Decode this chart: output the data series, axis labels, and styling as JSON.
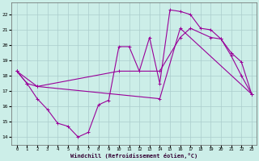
{
  "xlabel": "Windchill (Refroidissement éolien,°C)",
  "background_color": "#cceee8",
  "grid_color": "#aacccc",
  "line_color": "#990099",
  "x_ticks": [
    0,
    1,
    2,
    3,
    4,
    5,
    6,
    7,
    8,
    9,
    10,
    11,
    12,
    13,
    14,
    15,
    16,
    17,
    18,
    19,
    20,
    21,
    22,
    23
  ],
  "y_ticks": [
    14,
    15,
    16,
    17,
    18,
    19,
    20,
    21,
    22
  ],
  "ylim": [
    13.5,
    22.8
  ],
  "xlim": [
    -0.5,
    23.5
  ],
  "series1_x": [
    0,
    1,
    2,
    3,
    4,
    5,
    6,
    7,
    8,
    9,
    10,
    11,
    12,
    13,
    14,
    15,
    16,
    17,
    18,
    19,
    20,
    21,
    22,
    23
  ],
  "series1_y": [
    18.3,
    17.5,
    16.5,
    15.8,
    14.9,
    14.7,
    14.0,
    14.3,
    16.1,
    16.4,
    19.9,
    19.9,
    18.3,
    20.5,
    17.5,
    22.3,
    22.2,
    22.0,
    21.1,
    21.0,
    20.4,
    19.3,
    18.0,
    16.8
  ],
  "series2_x": [
    0,
    1,
    2,
    10,
    14,
    16,
    17,
    19,
    20,
    21,
    22,
    23
  ],
  "series2_y": [
    18.3,
    17.5,
    17.3,
    18.3,
    18.3,
    20.5,
    21.1,
    20.5,
    20.4,
    19.5,
    18.9,
    16.8
  ],
  "series3_x": [
    0,
    2,
    14,
    16,
    23
  ],
  "series3_y": [
    18.3,
    17.3,
    16.5,
    21.1,
    16.8
  ]
}
